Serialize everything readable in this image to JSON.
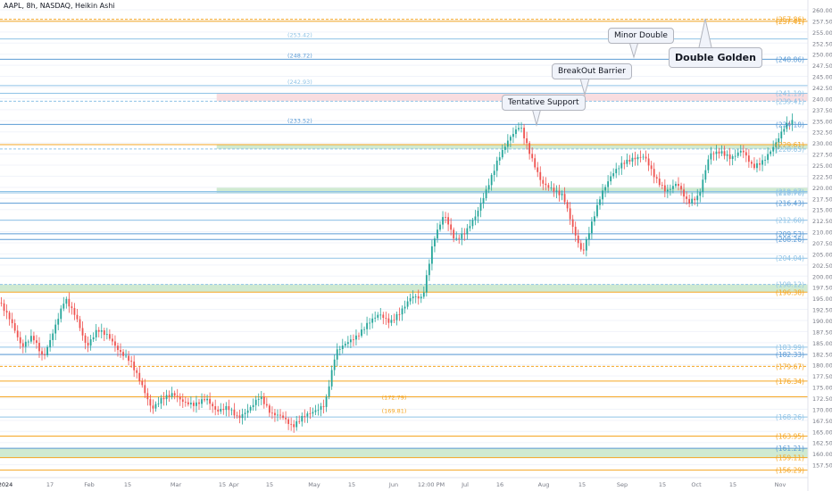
{
  "header": {
    "title": "AAPL, 8h, NASDAQ, Heikin Ashi"
  },
  "colors": {
    "bull": "#26a69a",
    "bear": "#ef5350",
    "blue": "#5b9bd5",
    "lightblue": "#8fc3e6",
    "orange": "#f5a623",
    "orangeText": "#f0a030",
    "grid": "#f0f3fa",
    "axis": "#787b86",
    "greenZone": "#c8e6c9",
    "redZone": "#f8d7da"
  },
  "chart_data": {
    "type": "candlestick",
    "style": "Heikin Ashi",
    "ylim": [
      155,
      261
    ],
    "y_ticks": [
      157.5,
      160,
      162.5,
      165,
      167.5,
      170,
      172.5,
      175,
      177.5,
      180,
      182.5,
      185,
      187.5,
      190,
      192.5,
      195,
      197.5,
      200,
      202.5,
      205,
      207.5,
      210,
      212.5,
      215,
      217.5,
      220,
      222.5,
      225,
      227.5,
      230,
      232.5,
      235,
      237.5,
      240,
      242.5,
      245,
      247.5,
      250,
      252.5,
      255,
      257.5,
      260
    ],
    "x_labels": [
      "2024",
      "17",
      "Feb",
      "15",
      "Mar",
      "15",
      "Apr",
      "15",
      "May",
      "15",
      "Jun",
      "12:00 PM",
      "Jul",
      "16",
      "Aug",
      "15",
      "Sep",
      "15",
      "Oct",
      "15",
      "Nov"
    ],
    "anchors": [
      {
        "d": 0,
        "p": 194.0
      },
      {
        "d": 8,
        "p": 190.0
      },
      {
        "d": 16,
        "p": 184.0
      },
      {
        "d": 24,
        "p": 186.5
      },
      {
        "d": 32,
        "p": 181.5
      },
      {
        "d": 40,
        "p": 188.0
      },
      {
        "d": 48,
        "p": 195.0
      },
      {
        "d": 56,
        "p": 191.0
      },
      {
        "d": 64,
        "p": 184.0
      },
      {
        "d": 72,
        "p": 188.0
      },
      {
        "d": 80,
        "p": 186.5
      },
      {
        "d": 88,
        "p": 183.0
      },
      {
        "d": 96,
        "p": 181.0
      },
      {
        "d": 104,
        "p": 176.0
      },
      {
        "d": 112,
        "p": 170.0
      },
      {
        "d": 120,
        "p": 172.5
      },
      {
        "d": 128,
        "p": 173.5
      },
      {
        "d": 136,
        "p": 171.5
      },
      {
        "d": 144,
        "p": 171.0
      },
      {
        "d": 152,
        "p": 172.5
      },
      {
        "d": 160,
        "p": 169.5
      },
      {
        "d": 168,
        "p": 170.5
      },
      {
        "d": 176,
        "p": 168.0
      },
      {
        "d": 184,
        "p": 170.0
      },
      {
        "d": 192,
        "p": 173.0
      },
      {
        "d": 200,
        "p": 169.0
      },
      {
        "d": 208,
        "p": 168.5
      },
      {
        "d": 216,
        "p": 166.0
      },
      {
        "d": 224,
        "p": 168.5
      },
      {
        "d": 232,
        "p": 169.5
      },
      {
        "d": 240,
        "p": 171.0
      },
      {
        "d": 248,
        "p": 183.0
      },
      {
        "d": 256,
        "p": 185.0
      },
      {
        "d": 264,
        "p": 186.5
      },
      {
        "d": 272,
        "p": 189.5
      },
      {
        "d": 280,
        "p": 191.5
      },
      {
        "d": 288,
        "p": 189.5
      },
      {
        "d": 296,
        "p": 192.0
      },
      {
        "d": 304,
        "p": 195.5
      },
      {
        "d": 312,
        "p": 195.0
      },
      {
        "d": 320,
        "p": 208.0
      },
      {
        "d": 328,
        "p": 214.0
      },
      {
        "d": 336,
        "p": 208.0
      },
      {
        "d": 344,
        "p": 210.0
      },
      {
        "d": 352,
        "p": 214.0
      },
      {
        "d": 360,
        "p": 220.0
      },
      {
        "d": 368,
        "p": 226.5
      },
      {
        "d": 376,
        "p": 231.0
      },
      {
        "d": 384,
        "p": 234.0
      },
      {
        "d": 392,
        "p": 227.0
      },
      {
        "d": 400,
        "p": 221.0
      },
      {
        "d": 408,
        "p": 219.5
      },
      {
        "d": 416,
        "p": 218.0
      },
      {
        "d": 424,
        "p": 210.0
      },
      {
        "d": 430,
        "p": 205.0
      },
      {
        "d": 436,
        "p": 211.0
      },
      {
        "d": 444,
        "p": 218.5
      },
      {
        "d": 452,
        "p": 223.0
      },
      {
        "d": 460,
        "p": 225.5
      },
      {
        "d": 468,
        "p": 226.5
      },
      {
        "d": 476,
        "p": 227.0
      },
      {
        "d": 484,
        "p": 222.0
      },
      {
        "d": 492,
        "p": 219.0
      },
      {
        "d": 500,
        "p": 221.0
      },
      {
        "d": 508,
        "p": 216.5
      },
      {
        "d": 516,
        "p": 218.0
      },
      {
        "d": 524,
        "p": 227.5
      },
      {
        "d": 532,
        "p": 228.0
      },
      {
        "d": 540,
        "p": 226.5
      },
      {
        "d": 548,
        "p": 228.5
      },
      {
        "d": 556,
        "p": 224.5
      },
      {
        "d": 564,
        "p": 226.0
      },
      {
        "d": 572,
        "p": 229.5
      },
      {
        "d": 580,
        "p": 234.0
      },
      {
        "d": 586,
        "p": 235.0
      }
    ],
    "price_lines": [
      {
        "price": 257.86,
        "label": "(257.86)",
        "color": "#f5a623",
        "dashed": true,
        "fromDay": 0,
        "leftLabel": ""
      },
      {
        "price": 257.41,
        "label": "(257.41)",
        "color": "#f5a623",
        "dashed": false,
        "fromDay": 0,
        "leftLabel": ""
      },
      {
        "price": 253.42,
        "label": "",
        "color": "#8fc3e6",
        "dashed": false,
        "fromDay": 0,
        "leftLabel": "(253.42)"
      },
      {
        "price": 248.86,
        "label": "(248.86)",
        "color": "#5b9bd5",
        "dashed": false,
        "fromDay": 0,
        "leftLabel": "(248.72)"
      },
      {
        "price": 242.93,
        "label": "",
        "color": "#8fc3e6",
        "dashed": false,
        "fromDay": 0,
        "leftLabel": "(242.93)"
      },
      {
        "price": 241.19,
        "label": "(241.19)",
        "color": "#8fc3e6",
        "dashed": false,
        "fromDay": 0,
        "leftLabel": ""
      },
      {
        "price": 239.41,
        "label": "(239.41)",
        "color": "#8fc3e6",
        "dashed": true,
        "fromDay": 0,
        "leftLabel": ""
      },
      {
        "price": 234.18,
        "label": "(234.18)",
        "color": "#5b9bd5",
        "dashed": false,
        "fromDay": 0,
        "leftLabel": "(233.52)"
      },
      {
        "price": 229.61,
        "label": "(229.61)",
        "color": "#f5a623",
        "dashed": false,
        "fromDay": 0,
        "leftLabel": ""
      },
      {
        "price": 228.65,
        "label": "(228.65)",
        "color": "#8fc3e6",
        "dashed": true,
        "fromDay": 0,
        "leftLabel": ""
      },
      {
        "price": 219.07,
        "label": "(219.07)",
        "color": "#8fc3e6",
        "dashed": false,
        "fromDay": 0,
        "leftLabel": ""
      },
      {
        "price": 218.76,
        "label": "(218.76)",
        "color": "#8fc3e6",
        "dashed": false,
        "fromDay": 0,
        "leftLabel": ""
      },
      {
        "price": 216.43,
        "label": "(216.43)",
        "color": "#5b9bd5",
        "dashed": false,
        "fromDay": 0,
        "leftLabel": ""
      },
      {
        "price": 212.6,
        "label": "(212.60)",
        "color": "#8fc3e6",
        "dashed": false,
        "fromDay": 0,
        "leftLabel": ""
      },
      {
        "price": 209.53,
        "label": "(209.53)",
        "color": "#5b9bd5",
        "dashed": false,
        "fromDay": 0,
        "leftLabel": ""
      },
      {
        "price": 208.26,
        "label": "(208.26)",
        "color": "#5b9bd5",
        "dashed": false,
        "fromDay": 0,
        "leftLabel": ""
      },
      {
        "price": 204.04,
        "label": "(204.04)",
        "color": "#8fc3e6",
        "dashed": false,
        "fromDay": 0,
        "leftLabel": ""
      },
      {
        "price": 198.12,
        "label": "(198.12)",
        "color": "#8fc3e6",
        "dashed": true,
        "fromDay": 0,
        "leftLabel": ""
      },
      {
        "price": 196.38,
        "label": "(196.38)",
        "color": "#f5a623",
        "dashed": false,
        "fromDay": 0,
        "leftLabel": ""
      },
      {
        "price": 183.99,
        "label": "(183.99)",
        "color": "#8fc3e6",
        "dashed": false,
        "fromDay": 0,
        "leftLabel": ""
      },
      {
        "price": 182.33,
        "label": "(182.33)",
        "color": "#5b9bd5",
        "dashed": false,
        "fromDay": 0,
        "leftLabel": ""
      },
      {
        "price": 179.67,
        "label": "(179.67)",
        "color": "#f5a623",
        "dashed": true,
        "fromDay": 0,
        "leftLabel": ""
      },
      {
        "price": 176.34,
        "label": "(176.34)",
        "color": "#f5a623",
        "dashed": false,
        "fromDay": 0,
        "leftLabel": ""
      },
      {
        "price": 172.79,
        "label": "",
        "color": "#f5a623",
        "dashed": false,
        "fromDay": 0,
        "leftLabel": ""
      },
      {
        "price": 168.26,
        "label": "(168.26)",
        "color": "#8fc3e6",
        "dashed": false,
        "fromDay": 0,
        "leftLabel": ""
      },
      {
        "price": 163.95,
        "label": "(163.95)",
        "color": "#f5a623",
        "dashed": false,
        "fromDay": 0,
        "leftLabel": ""
      },
      {
        "price": 161.21,
        "label": "(161.21)",
        "color": "#5b9bd5",
        "dashed": false,
        "fromDay": 0,
        "leftLabel": ""
      },
      {
        "price": 159.11,
        "label": "(159.11)",
        "color": "#f5a623",
        "dashed": false,
        "fromDay": 0,
        "leftLabel": ""
      },
      {
        "price": 156.29,
        "label": "(156.29)",
        "color": "#f5a623",
        "dashed": false,
        "fromDay": 0,
        "leftLabel": ""
      }
    ],
    "in_chart_labels": [
      {
        "price": 172.79,
        "day": 212,
        "text": "(172.79)",
        "color": "#f5a623"
      },
      {
        "price": 169.81,
        "day": 212,
        "text": "(169.81)",
        "color": "#f5a623"
      }
    ],
    "zones": [
      {
        "from": 239.41,
        "to": 241.19,
        "color": "#f8d7da",
        "fromDay": 160
      },
      {
        "from": 228.65,
        "to": 229.61,
        "color": "#c8e6c9",
        "fromDay": 160
      },
      {
        "from": 218.76,
        "to": 219.9,
        "color": "#c8e6c9",
        "fromDay": 160
      },
      {
        "from": 196.38,
        "to": 198.12,
        "color": "#c8e6c9",
        "fromDay": 0
      },
      {
        "from": 159.11,
        "to": 161.21,
        "color": "#c8e6c9",
        "fromDay": 0
      }
    ],
    "annotations": [
      {
        "text": "Tentative Support",
        "price": 234.18,
        "day": 390,
        "big": false
      },
      {
        "text": "BreakOut Barrier",
        "price": 241.19,
        "day": 428,
        "big": false
      },
      {
        "text": "Minor Double",
        "price": 248.86,
        "day": 465,
        "big": false
      },
      {
        "text": "Double Golden",
        "price": 257.86,
        "day": 518,
        "big": true
      }
    ]
  }
}
